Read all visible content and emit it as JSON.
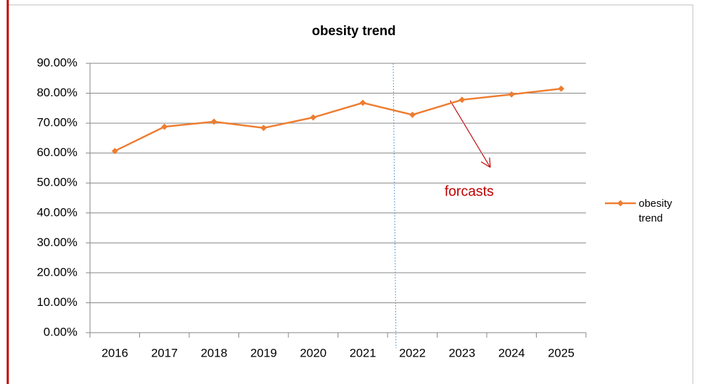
{
  "chart_data": {
    "type": "line",
    "title": "obesity trend",
    "categories": [
      "2016",
      "2017",
      "2018",
      "2019",
      "2020",
      "2021",
      "2022",
      "2023",
      "2024",
      "2025"
    ],
    "series": [
      {
        "name": "obesity trend",
        "color": "#ed7d31",
        "values": [
          60.7,
          68.8,
          70.5,
          68.4,
          71.9,
          76.8,
          72.8,
          77.8,
          79.6,
          81.5
        ]
      }
    ],
    "ylim": [
      0,
      90
    ],
    "yticks": [
      {
        "value": 0,
        "label": "0.00%"
      },
      {
        "value": 10,
        "label": "10.00%"
      },
      {
        "value": 20,
        "label": "20.00%"
      },
      {
        "value": 30,
        "label": "30.00%"
      },
      {
        "value": 40,
        "label": "40.00%"
      },
      {
        "value": 50,
        "label": "50.00%"
      },
      {
        "value": 60,
        "label": "60.00%"
      },
      {
        "value": 70,
        "label": "70.00%"
      },
      {
        "value": 80,
        "label": "80.00%"
      },
      {
        "value": 90,
        "label": "90.00%"
      }
    ],
    "grid": true,
    "legend": "right",
    "annotations": [
      {
        "text": "forcasts"
      }
    ]
  }
}
